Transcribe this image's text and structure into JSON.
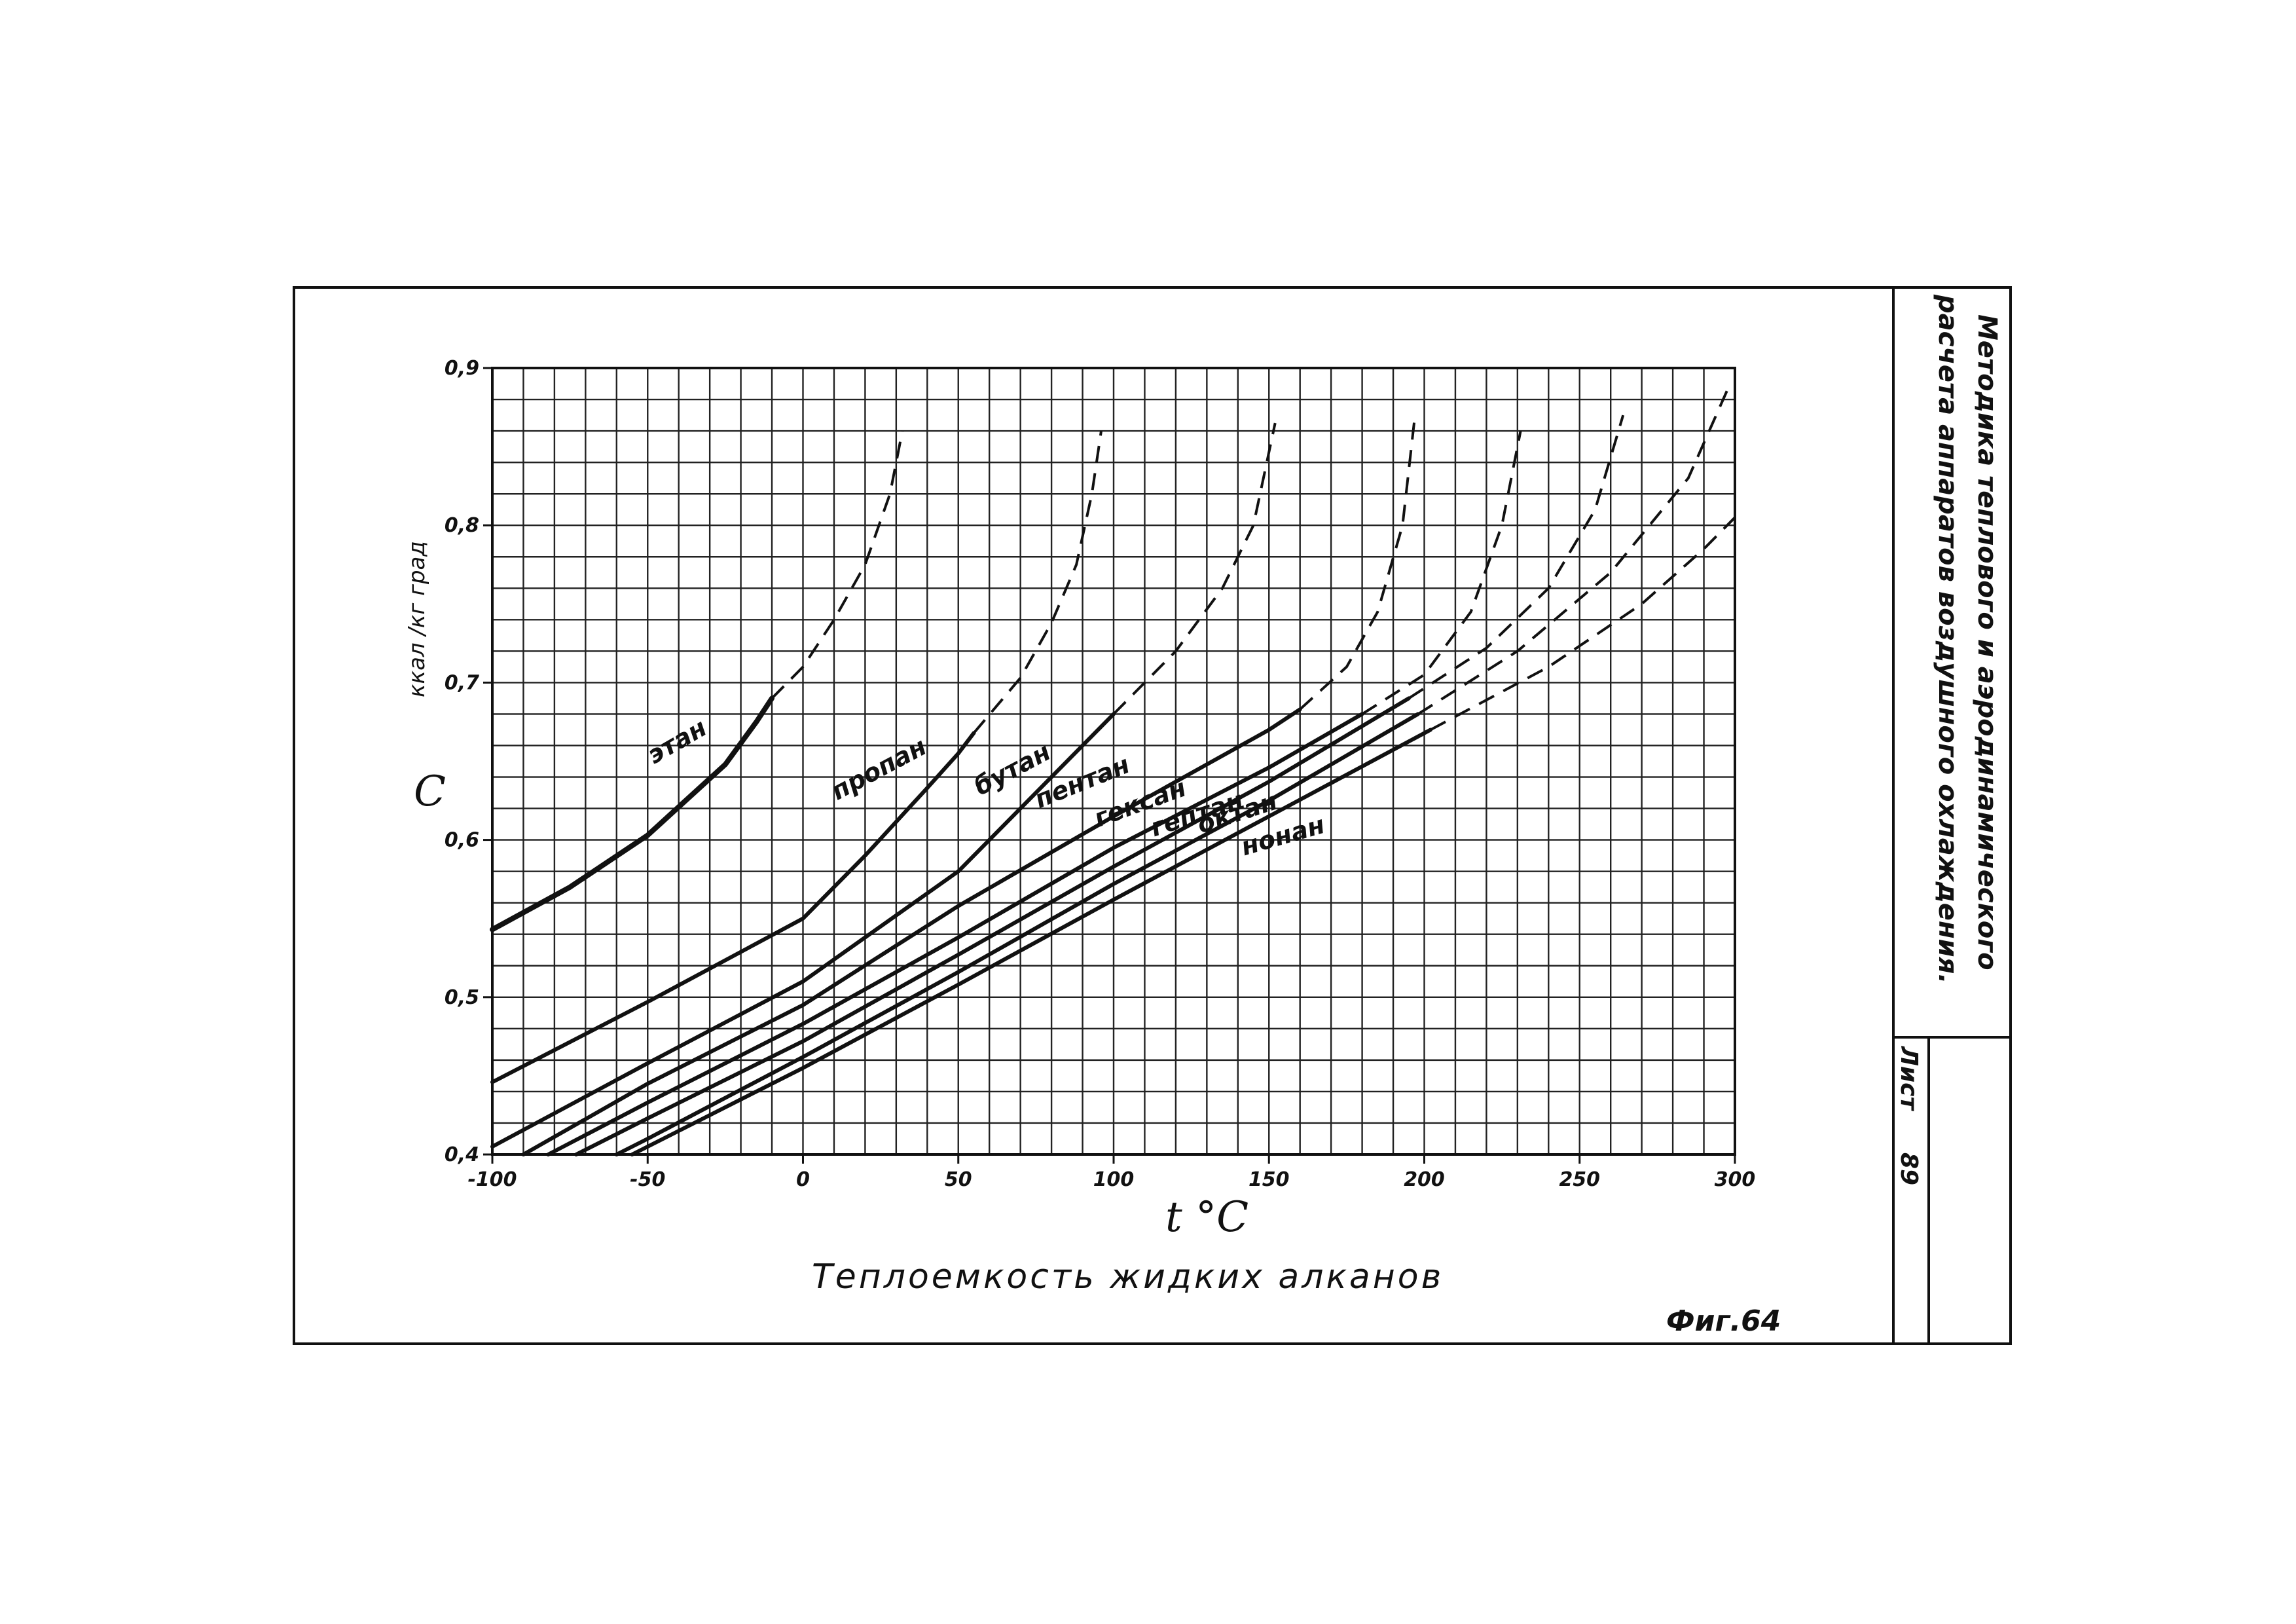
{
  "stamp": {
    "title_line1": "Методика теплового и аэродинамического",
    "title_line2": "расчета аппаратов воздушного охлаждения.",
    "sheet_label": "Лист",
    "sheet_number": "89"
  },
  "figure": {
    "caption": "Теплоемкость жидких алканов",
    "number": "Фиг.64"
  },
  "chart_data": {
    "type": "line",
    "title": "Теплоемкость жидких алканов",
    "xlabel": "t °C",
    "ylabel_symbol": "C",
    "ylabel_units": "ккал /кг град",
    "xlim": [
      -100,
      300
    ],
    "ylim": [
      0.4,
      0.9
    ],
    "xticks": [
      -100,
      -50,
      0,
      50,
      100,
      150,
      200,
      250,
      300
    ],
    "xtick_labels": [
      "-100",
      "-50",
      "0",
      "50",
      "100",
      "150",
      "200",
      "250",
      "300"
    ],
    "yticks": [
      0.4,
      0.5,
      0.6,
      0.7,
      0.8,
      0.9
    ],
    "ytick_labels": [
      "0,4",
      "0,5",
      "0,6",
      "0,7",
      "0,8",
      "0,9"
    ],
    "grid": true,
    "line_color": "#111111",
    "series": [
      {
        "name": "этан",
        "solid": [
          [
            -100,
            0.543
          ],
          [
            -75,
            0.57
          ],
          [
            -50,
            0.603
          ],
          [
            -25,
            0.648
          ],
          [
            -15,
            0.675
          ],
          [
            -10,
            0.69
          ]
        ],
        "dashed": [
          [
            -10,
            0.69
          ],
          [
            0,
            0.71
          ],
          [
            10,
            0.74
          ],
          [
            20,
            0.775
          ],
          [
            28,
            0.82
          ],
          [
            32,
            0.86
          ]
        ]
      },
      {
        "name": "пропан",
        "solid": [
          [
            -100,
            0.446
          ],
          [
            -50,
            0.497
          ],
          [
            0,
            0.55
          ],
          [
            20,
            0.59
          ],
          [
            40,
            0.633
          ],
          [
            50,
            0.655
          ],
          [
            55,
            0.668
          ]
        ],
        "dashed": [
          [
            55,
            0.668
          ],
          [
            70,
            0.703
          ],
          [
            80,
            0.738
          ],
          [
            88,
            0.775
          ],
          [
            93,
            0.82
          ],
          [
            96,
            0.86
          ]
        ]
      },
      {
        "name": "бутан",
        "solid": [
          [
            -100,
            0.405
          ],
          [
            -50,
            0.458
          ],
          [
            0,
            0.51
          ],
          [
            50,
            0.58
          ],
          [
            80,
            0.64
          ],
          [
            100,
            0.68
          ]
        ],
        "dashed": [
          [
            100,
            0.68
          ],
          [
            120,
            0.72
          ],
          [
            135,
            0.76
          ],
          [
            145,
            0.8
          ],
          [
            152,
            0.865
          ]
        ]
      },
      {
        "name": "пентан",
        "solid": [
          [
            -90,
            0.4
          ],
          [
            -50,
            0.445
          ],
          [
            0,
            0.495
          ],
          [
            50,
            0.558
          ],
          [
            100,
            0.615
          ],
          [
            150,
            0.67
          ],
          [
            160,
            0.683
          ]
        ],
        "dashed": [
          [
            160,
            0.683
          ],
          [
            175,
            0.71
          ],
          [
            185,
            0.745
          ],
          [
            193,
            0.8
          ],
          [
            197,
            0.87
          ]
        ]
      },
      {
        "name": "гексан",
        "solid": [
          [
            -82,
            0.4
          ],
          [
            -50,
            0.433
          ],
          [
            0,
            0.483
          ],
          [
            50,
            0.538
          ],
          [
            100,
            0.595
          ],
          [
            150,
            0.646
          ],
          [
            180,
            0.68
          ]
        ],
        "dashed": [
          [
            180,
            0.68
          ],
          [
            200,
            0.705
          ],
          [
            215,
            0.745
          ],
          [
            225,
            0.8
          ],
          [
            231,
            0.86
          ]
        ]
      },
      {
        "name": "гептан",
        "solid": [
          [
            -73,
            0.4
          ],
          [
            -50,
            0.423
          ],
          [
            0,
            0.472
          ],
          [
            50,
            0.527
          ],
          [
            100,
            0.583
          ],
          [
            150,
            0.637
          ],
          [
            195,
            0.69
          ]
        ],
        "dashed": [
          [
            195,
            0.69
          ],
          [
            220,
            0.722
          ],
          [
            240,
            0.76
          ],
          [
            255,
            0.81
          ],
          [
            264,
            0.87
          ]
        ]
      },
      {
        "name": "октан",
        "solid": [
          [
            -60,
            0.4
          ],
          [
            -50,
            0.41
          ],
          [
            0,
            0.462
          ],
          [
            50,
            0.516
          ],
          [
            100,
            0.572
          ],
          [
            150,
            0.625
          ],
          [
            198,
            0.68
          ]
        ],
        "dashed": [
          [
            198,
            0.68
          ],
          [
            230,
            0.72
          ],
          [
            260,
            0.77
          ],
          [
            285,
            0.83
          ],
          [
            298,
            0.888
          ]
        ]
      },
      {
        "name": "нонан",
        "solid": [
          [
            -55,
            0.4
          ],
          [
            0,
            0.455
          ],
          [
            50,
            0.508
          ],
          [
            100,
            0.562
          ],
          [
            150,
            0.615
          ],
          [
            202,
            0.67
          ]
        ],
        "dashed": [
          [
            202,
            0.67
          ],
          [
            240,
            0.71
          ],
          [
            270,
            0.75
          ],
          [
            290,
            0.785
          ],
          [
            300,
            0.805
          ]
        ]
      }
    ]
  }
}
